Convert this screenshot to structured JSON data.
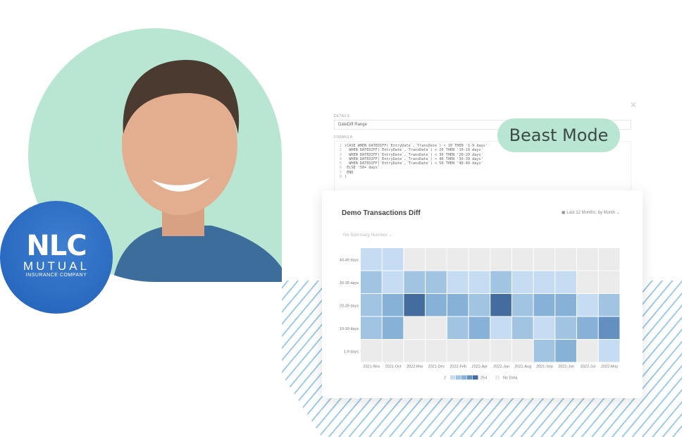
{
  "brand": {
    "logo_main": "NLC",
    "logo_sub": "MUTUAL",
    "logo_tag": "INSURANCE COMPANY"
  },
  "formula_panel": {
    "details_label": "DETAILS",
    "name_value": "DateDiff Range",
    "formula_label": "FORMULA",
    "close_icon": "close-icon",
    "lines": [
      "(CASE WHEN DATEDIFF(`EntryDate`,`TransDate`) < 10 THEN '1-9 days'",
      "  WHEN DATEDIFF(`EntryDate`,`TransDate`) < 20 THEN '10-19 days'",
      "  WHEN DATEDIFF(`EntryDate`,`TransDate`) < 30 THEN '20-29 days'",
      "  WHEN DATEDIFF(`EntryDate`,`TransDate`) < 40 THEN '30-39 days'",
      "  WHEN DATEDIFF(`EntryDate`,`TransDate`) < 50 THEN '40-49 days'",
      " ELSE '50+ days'",
      " END",
      ")"
    ]
  },
  "badge": {
    "label": "Beast Mode"
  },
  "card": {
    "title": "Demo Transactions Diff",
    "date_range": "Last 12 Months, by Month",
    "summary": "No Summary Number"
  },
  "colors": {
    "mint": "#b9e6d3",
    "no_data": "#ebebeb",
    "scale": [
      "#c5dcf2",
      "#a2c4e3",
      "#88b1d8",
      "#6390bf",
      "#446c9e"
    ]
  },
  "chart_data": {
    "type": "heatmap",
    "categories": [
      "2021-Nov",
      "2021-Oct",
      "2022-Mar",
      "2021-Dec",
      "2022-Feb",
      "2022-Apr",
      "2022-Jan",
      "2021-Aug",
      "2021-Sep",
      "2022-Jun",
      "2022-Jul",
      "2022-May"
    ],
    "rows": [
      "40-49 days",
      "30-39 days",
      "20-29 days",
      "10-19 days",
      "1-9 days"
    ],
    "value_note_scale_buckets": "1 (light) to 5 (dark); 0 = No Data",
    "values": [
      [
        1,
        1,
        0,
        0,
        0,
        0,
        0,
        0,
        0,
        0,
        0,
        0
      ],
      [
        2,
        1,
        2,
        2,
        1,
        1,
        2,
        1,
        1,
        1,
        0,
        0
      ],
      [
        2,
        3,
        5,
        3,
        3,
        2,
        5,
        2,
        3,
        3,
        1,
        2
      ],
      [
        2,
        3,
        0,
        0,
        2,
        3,
        1,
        2,
        1,
        2,
        3,
        4
      ],
      [
        0,
        0,
        0,
        0,
        0,
        0,
        0,
        0,
        2,
        3,
        0,
        1
      ]
    ],
    "legend": {
      "min": "2",
      "max": "254",
      "no_data": "No Data",
      "placement": "bottom"
    }
  }
}
